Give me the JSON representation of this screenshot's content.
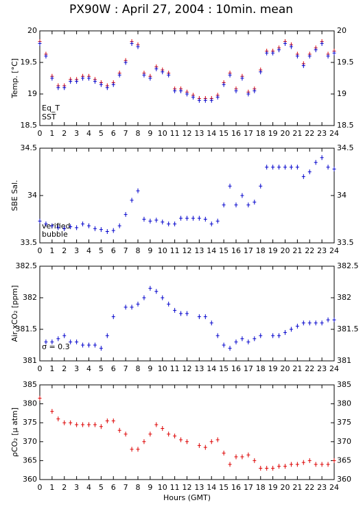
{
  "chart_data": [
    {
      "type": "scatter",
      "title": "PX90W : April 27, 2004 : 10min. mean",
      "ylabel": "Temp. [°C]",
      "x": [
        0,
        0.5,
        1,
        1.5,
        2,
        2.5,
        3,
        3.5,
        4,
        4.5,
        5,
        5.5,
        6,
        6.5,
        7,
        7.5,
        8,
        8.5,
        9,
        9.5,
        10,
        10.5,
        11,
        11.5,
        12,
        12.5,
        13,
        13.5,
        14,
        14.5,
        15,
        15.5,
        16,
        16.5,
        17,
        17.5,
        18,
        18.5,
        19,
        19.5,
        20,
        20.5,
        21,
        21.5,
        22,
        22.5,
        23,
        23.5,
        24
      ],
      "xlim": [
        0,
        24
      ],
      "xticks": [
        0,
        1,
        2,
        3,
        4,
        5,
        6,
        7,
        8,
        9,
        10,
        11,
        12,
        13,
        14,
        15,
        16,
        17,
        18,
        19,
        20,
        21,
        22,
        23,
        24
      ],
      "ylim": [
        18.5,
        20
      ],
      "yticks": [
        18.5,
        19,
        19.5,
        20
      ],
      "series": [
        {
          "name": "Eq_T",
          "color": "#dd0000",
          "values": [
            19.83,
            19.63,
            19.28,
            19.13,
            19.13,
            19.23,
            19.23,
            19.28,
            19.28,
            19.23,
            19.18,
            19.13,
            19.18,
            19.33,
            19.53,
            19.83,
            19.78,
            19.33,
            19.28,
            19.43,
            19.38,
            19.33,
            19.08,
            19.08,
            19.03,
            18.98,
            18.93,
            18.93,
            18.93,
            18.98,
            19.18,
            19.33,
            19.08,
            19.28,
            19.03,
            19.08,
            19.38,
            19.68,
            19.68,
            19.73,
            19.83,
            19.78,
            19.63,
            19.48,
            19.63,
            19.73,
            19.83,
            19.63,
            19.68
          ]
        },
        {
          "name": "SST",
          "color": "#0000cc",
          "values": [
            19.8,
            19.6,
            19.25,
            19.1,
            19.1,
            19.2,
            19.2,
            19.25,
            19.25,
            19.2,
            19.15,
            19.1,
            19.15,
            19.3,
            19.5,
            19.8,
            19.75,
            19.3,
            19.25,
            19.4,
            19.35,
            19.3,
            19.05,
            19.05,
            19.0,
            18.95,
            18.9,
            18.9,
            18.9,
            18.95,
            19.15,
            19.3,
            19.05,
            19.25,
            19.0,
            19.05,
            19.35,
            19.65,
            19.65,
            19.7,
            19.8,
            19.75,
            19.6,
            19.45,
            19.6,
            19.7,
            19.8,
            19.6,
            19.65
          ]
        }
      ]
    },
    {
      "type": "scatter",
      "ylabel": "SBE Sal.",
      "x": [
        0,
        0.5,
        1,
        1.5,
        2,
        2.5,
        3,
        3.5,
        4,
        4.5,
        5,
        5.5,
        6,
        6.5,
        7,
        7.5,
        8,
        8.5,
        9,
        9.5,
        10,
        10.5,
        11,
        11.5,
        12,
        12.5,
        13,
        13.5,
        14,
        14.5,
        15,
        15.5,
        16,
        16.5,
        17,
        17.5,
        18,
        18.5,
        19,
        19.5,
        20,
        20.5,
        21,
        21.5,
        22,
        22.5,
        23,
        23.5,
        24
      ],
      "xlim": [
        0,
        24
      ],
      "xticks": [
        0,
        1,
        2,
        3,
        4,
        5,
        6,
        7,
        8,
        9,
        10,
        11,
        12,
        13,
        14,
        15,
        16,
        17,
        18,
        19,
        20,
        21,
        22,
        23,
        24
      ],
      "ylim": [
        33.5,
        34.5
      ],
      "yticks": [
        33.5,
        34,
        34.5
      ],
      "annotations": [
        {
          "text": "verified",
          "color": "#0000cc"
        },
        {
          "text": "bubble",
          "color": "#cc00cc"
        }
      ],
      "series": [
        {
          "color": "#0000cc",
          "values": [
            33.73,
            33.7,
            33.68,
            33.66,
            33.65,
            33.67,
            33.66,
            33.7,
            33.68,
            33.65,
            33.64,
            33.62,
            33.63,
            33.68,
            33.8,
            33.95,
            34.05,
            33.75,
            33.73,
            33.74,
            33.72,
            33.7,
            33.7,
            33.76,
            33.76,
            33.76,
            33.76,
            33.75,
            33.7,
            33.73,
            33.9,
            34.1,
            33.9,
            34.0,
            33.9,
            33.93,
            34.1,
            34.3,
            34.3,
            34.3,
            34.3,
            34.3,
            34.3,
            34.2,
            34.25,
            34.35,
            34.4,
            34.3,
            34.28
          ]
        }
      ]
    },
    {
      "type": "scatter",
      "ylabel": "Air xCO₂ [ppm]",
      "x": [
        0,
        0.5,
        1,
        1.5,
        2,
        2.5,
        3,
        3.5,
        4,
        4.5,
        5,
        5.5,
        6,
        6.5,
        7,
        7.5,
        8,
        8.5,
        9,
        9.5,
        10,
        10.5,
        11,
        11.5,
        12,
        12.5,
        13,
        13.5,
        14,
        14.5,
        15,
        15.5,
        16,
        16.5,
        17,
        17.5,
        18,
        18.5,
        19,
        19.5,
        20,
        20.5,
        21,
        21.5,
        22,
        22.5,
        23,
        23.5,
        24
      ],
      "xlim": [
        0,
        24
      ],
      "xticks": [
        0,
        1,
        2,
        3,
        4,
        5,
        6,
        7,
        8,
        9,
        10,
        11,
        12,
        13,
        14,
        15,
        16,
        17,
        18,
        19,
        20,
        21,
        22,
        23,
        24
      ],
      "ylim": [
        381,
        382.5
      ],
      "yticks": [
        381,
        381.5,
        382,
        382.5
      ],
      "annotations": [
        {
          "text": "σ = 0.3",
          "color": "#cc00cc"
        }
      ],
      "series": [
        {
          "color": "#0000cc",
          "values": [
            null,
            381.3,
            381.3,
            381.35,
            381.4,
            381.3,
            381.3,
            381.25,
            381.25,
            381.25,
            381.2,
            381.4,
            381.7,
            null,
            381.85,
            381.85,
            381.9,
            382.0,
            382.15,
            382.1,
            382.0,
            381.9,
            381.8,
            381.75,
            381.75,
            null,
            381.7,
            381.7,
            381.6,
            381.4,
            381.25,
            381.2,
            381.3,
            381.35,
            381.3,
            381.35,
            381.4,
            null,
            381.4,
            381.4,
            381.45,
            381.5,
            381.55,
            381.6,
            381.6,
            381.6,
            381.6,
            381.65,
            381.65
          ]
        }
      ]
    },
    {
      "type": "scatter",
      "ylabel": "ρCO₂ [μ atm]",
      "xlabel": "Hours (GMT)",
      "x": [
        0,
        0.5,
        1,
        1.5,
        2,
        2.5,
        3,
        3.5,
        4,
        4.5,
        5,
        5.5,
        6,
        6.5,
        7,
        7.5,
        8,
        8.5,
        9,
        9.5,
        10,
        10.5,
        11,
        11.5,
        12,
        12.5,
        13,
        13.5,
        14,
        14.5,
        15,
        15.5,
        16,
        16.5,
        17,
        17.5,
        18,
        18.5,
        19,
        19.5,
        20,
        20.5,
        21,
        21.5,
        22,
        22.5,
        23,
        23.5,
        24
      ],
      "xlim": [
        0,
        24
      ],
      "xticks": [
        0,
        1,
        2,
        3,
        4,
        5,
        6,
        7,
        8,
        9,
        10,
        11,
        12,
        13,
        14,
        15,
        16,
        17,
        18,
        19,
        20,
        21,
        22,
        23,
        24
      ],
      "ylim": [
        360,
        385
      ],
      "yticks": [
        360,
        365,
        370,
        375,
        380,
        385
      ],
      "series": [
        {
          "color": "#dd0000",
          "values": [
            381.5,
            null,
            378,
            376,
            375,
            375,
            374.5,
            374.5,
            374.5,
            374.5,
            374,
            375.5,
            375.5,
            373,
            372,
            368,
            368,
            370,
            372,
            374.5,
            373.5,
            372,
            371.5,
            370.5,
            370,
            null,
            369,
            368.5,
            370,
            370.5,
            367,
            364,
            366,
            366,
            366.5,
            365,
            363,
            363,
            363,
            363.5,
            363.5,
            364,
            364,
            364.5,
            365,
            364,
            364,
            364,
            365
          ]
        }
      ]
    }
  ]
}
